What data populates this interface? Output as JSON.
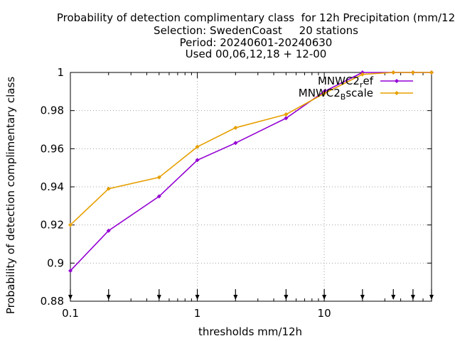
{
  "chart_data": {
    "type": "line",
    "title_lines": [
      "Probability of detection complimentary class  for 12h Precipitation (mm/12",
      "Selection: SwedenCoast     20 stations",
      "Period: 20240601-20240630",
      "Used 00,06,12,18 + 12-00"
    ],
    "xlabel": "thresholds mm/12h",
    "ylabel": "Probability of detection complimentary class",
    "xscale": "log",
    "xlim": [
      0.1,
      70
    ],
    "ylim": [
      0.88,
      1.0
    ],
    "grid": true,
    "legend_position": "top-right",
    "x": [
      0.1,
      0.2,
      0.5,
      1,
      2,
      5,
      10,
      20,
      35,
      50,
      70
    ],
    "xtick_labels": [
      "0.1",
      "1",
      "10"
    ],
    "ytick_labels": [
      "0.88",
      "0.9",
      "0.92",
      "0.94",
      "0.96",
      "0.98",
      "1"
    ],
    "series": [
      {
        "name": "MNWC2_ref",
        "legend_main": "MNWC2",
        "legend_sub": "r",
        "legend_tail": "ef",
        "color": "#9400d3",
        "values": [
          0.896,
          0.917,
          0.935,
          0.954,
          0.963,
          0.976,
          0.99,
          1.0,
          1.0,
          1.0,
          1.0
        ]
      },
      {
        "name": "MNWC2_Bscale",
        "legend_main": "MNWC2",
        "legend_sub": "B",
        "legend_tail": "scale",
        "color": "#e69f00",
        "values": [
          0.92,
          0.939,
          0.945,
          0.961,
          0.971,
          0.978,
          0.989,
          0.999,
          1.0,
          1.0,
          1.0
        ]
      }
    ]
  }
}
